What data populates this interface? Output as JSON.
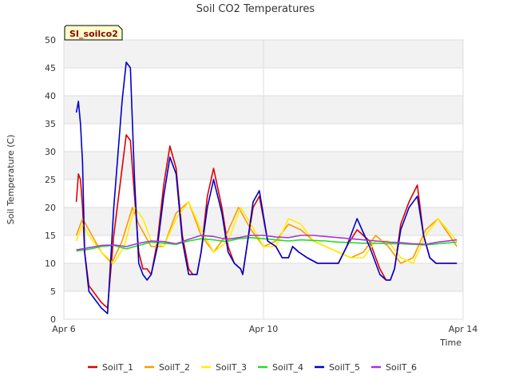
{
  "chart_data": {
    "type": "line",
    "title": "Soil CO2 Temperatures",
    "badge": "SI_soilco2",
    "xlabel": "Time",
    "ylabel": "Soil Temperature (C)",
    "ylim": [
      0,
      50
    ],
    "yticks": [
      0,
      5,
      10,
      15,
      20,
      25,
      30,
      35,
      40,
      45,
      50
    ],
    "xlim": [
      "2024-04-06",
      "2024-04-14"
    ],
    "xticks": [
      {
        "date": "2024-04-06",
        "label": "Apr 6"
      },
      {
        "date": "2024-04-10",
        "label": "Apr 10"
      },
      {
        "date": "2024-04-14",
        "label": "Apr 14"
      }
    ],
    "grid": true,
    "legend_position": "bottom",
    "series": [
      {
        "name": "SoilT_1",
        "color": "#dd0000",
        "x": [
          "2024-04-06 06:00",
          "2024-04-06 07:00",
          "2024-04-06 08:00",
          "2024-04-06 09:00",
          "2024-04-06 10:00",
          "2024-04-06 12:00",
          "2024-04-06 14:00",
          "2024-04-06 16:00",
          "2024-04-06 18:00",
          "2024-04-06 21:00",
          "2024-04-07 00:00",
          "2024-04-07 04:00",
          "2024-04-07 06:00",
          "2024-04-07 08:00",
          "2024-04-07 10:00",
          "2024-04-07 12:00",
          "2024-04-07 14:00",
          "2024-04-07 16:00",
          "2024-04-07 18:00",
          "2024-04-07 21:00",
          "2024-04-08 00:00",
          "2024-04-08 03:00",
          "2024-04-08 06:00",
          "2024-04-08 09:00",
          "2024-04-08 12:00",
          "2024-04-08 14:00",
          "2024-04-08 16:00",
          "2024-04-08 18:00",
          "2024-04-08 21:00",
          "2024-04-09 00:00",
          "2024-04-09 04:00",
          "2024-04-09 07:00",
          "2024-04-09 10:00",
          "2024-04-09 13:00",
          "2024-04-09 14:00",
          "2024-04-09 16:00",
          "2024-04-09 19:00",
          "2024-04-09 22:00",
          "2024-04-10 02:00",
          "2024-04-10 06:00",
          "2024-04-10 09:00",
          "2024-04-10 12:00",
          "2024-04-10 14:00",
          "2024-04-10 17:00",
          "2024-04-10 21:00",
          "2024-04-11 02:00",
          "2024-04-11 05:00",
          "2024-04-11 07:00",
          "2024-04-11 09:00",
          "2024-04-11 12:00",
          "2024-04-11 16:00",
          "2024-04-11 21:00",
          "2024-04-12 03:00",
          "2024-04-12 08:00",
          "2024-04-12 11:00",
          "2024-04-12 13:00",
          "2024-04-12 15:00",
          "2024-04-12 18:00",
          "2024-04-12 22:00",
          "2024-04-13 02:00",
          "2024-04-13 05:00",
          "2024-04-13 08:00",
          "2024-04-13 11:00",
          "2024-04-13 13:00",
          "2024-04-13 15:00",
          "2024-04-13 18:00",
          "2024-04-13 21:00"
        ],
        "y": [
          21,
          26,
          25,
          20,
          12,
          6,
          5,
          4,
          3,
          2,
          15,
          27,
          33,
          32,
          22,
          12,
          9,
          9,
          8,
          14,
          24,
          31,
          27,
          15,
          9,
          8,
          8,
          12,
          22,
          27,
          20,
          13,
          10,
          9,
          8,
          13,
          20,
          22,
          14,
          13,
          11,
          11,
          13,
          12,
          11,
          10,
          10,
          10,
          10,
          10,
          13,
          16,
          14,
          9,
          7,
          7,
          9,
          17,
          21,
          24,
          15,
          11,
          10,
          10,
          10,
          10,
          10
        ]
      },
      {
        "name": "SoilT_2",
        "color": "#ff9900",
        "x": [
          "2024-04-06 06:00",
          "2024-04-06 09:00",
          "2024-04-06 12:00",
          "2024-04-06 18:00",
          "2024-04-06 23:00",
          "2024-04-07 04:00",
          "2024-04-07 09:00",
          "2024-04-07 12:00",
          "2024-04-07 18:00",
          "2024-04-08 00:00",
          "2024-04-08 06:00",
          "2024-04-08 12:00",
          "2024-04-08 18:00",
          "2024-04-09 00:00",
          "2024-04-09 06:00",
          "2024-04-09 12:00",
          "2024-04-09 18:00",
          "2024-04-10 00:00",
          "2024-04-10 06:00",
          "2024-04-10 12:00",
          "2024-04-10 18:00",
          "2024-04-11 00:00",
          "2024-04-11 06:00",
          "2024-04-11 12:00",
          "2024-04-11 18:00",
          "2024-04-12 00:00",
          "2024-04-12 06:00",
          "2024-04-12 12:00",
          "2024-04-12 18:00",
          "2024-04-13 00:00",
          "2024-04-13 06:00",
          "2024-04-13 12:00",
          "2024-04-13 21:00"
        ],
        "y": [
          15,
          18,
          16,
          12,
          10,
          14,
          20,
          17,
          13,
          13,
          19,
          21,
          15,
          12,
          15,
          20,
          16,
          13,
          14,
          17,
          16,
          14,
          13,
          12,
          11,
          12,
          15,
          13,
          10,
          11,
          16,
          18,
          13
        ]
      },
      {
        "name": "SoilT_3",
        "color": "#ffee00",
        "x": [
          "2024-04-06 06:00",
          "2024-04-06 09:00",
          "2024-04-06 12:00",
          "2024-04-06 18:00",
          "2024-04-07 00:00",
          "2024-04-07 05:00",
          "2024-04-07 10:00",
          "2024-04-07 14:00",
          "2024-04-07 18:00",
          "2024-04-08 00:00",
          "2024-04-08 06:00",
          "2024-04-08 12:00",
          "2024-04-08 18:00",
          "2024-04-09 00:00",
          "2024-04-09 07:00",
          "2024-04-09 13:00",
          "2024-04-09 18:00",
          "2024-04-10 00:00",
          "2024-04-10 06:00",
          "2024-04-10 12:00",
          "2024-04-10 18:00",
          "2024-04-11 00:00",
          "2024-04-11 06:00",
          "2024-04-11 12:00",
          "2024-04-11 18:00",
          "2024-04-12 00:00",
          "2024-04-12 06:00",
          "2024-04-12 12:00",
          "2024-04-12 18:00",
          "2024-04-13 00:00",
          "2024-04-13 06:00",
          "2024-04-13 12:00",
          "2024-04-13 21:00"
        ],
        "y": [
          14,
          17,
          15,
          12,
          10,
          13,
          20,
          18,
          14,
          13,
          18,
          21,
          16,
          12,
          14,
          20,
          17,
          13,
          13,
          18,
          17,
          14,
          13,
          12,
          11,
          11,
          14,
          14,
          11,
          10,
          15,
          18,
          14
        ]
      },
      {
        "name": "SoilT_4",
        "color": "#22dd22",
        "x": [
          "2024-04-06 06:00",
          "2024-04-06 12:00",
          "2024-04-06 18:00",
          "2024-04-07 00:00",
          "2024-04-07 06:00",
          "2024-04-07 12:00",
          "2024-04-07 18:00",
          "2024-04-08 00:00",
          "2024-04-08 06:00",
          "2024-04-08 12:00",
          "2024-04-08 18:00",
          "2024-04-09 00:00",
          "2024-04-09 06:00",
          "2024-04-09 12:00",
          "2024-04-09 18:00",
          "2024-04-10 00:00",
          "2024-04-10 06:00",
          "2024-04-10 12:00",
          "2024-04-10 18:00",
          "2024-04-11 00:00",
          "2024-04-11 06:00",
          "2024-04-11 12:00",
          "2024-04-11 18:00",
          "2024-04-12 00:00",
          "2024-04-12 06:00",
          "2024-04-12 12:00",
          "2024-04-12 18:00",
          "2024-04-13 00:00",
          "2024-04-13 06:00",
          "2024-04-13 12:00",
          "2024-04-13 21:00"
        ],
        "y": [
          12.2,
          12.5,
          13.0,
          13.2,
          12.6,
          13.2,
          13.8,
          13.6,
          13.4,
          14.0,
          14.4,
          14.2,
          13.9,
          14.4,
          14.6,
          14.4,
          14.2,
          14.0,
          14.2,
          14.1,
          14.0,
          13.8,
          13.7,
          13.6,
          13.6,
          13.5,
          13.5,
          13.4,
          13.3,
          13.5,
          13.8
        ]
      },
      {
        "name": "SoilT_5",
        "color": "#0000cc",
        "x": [
          "2024-04-06 06:00",
          "2024-04-06 07:00",
          "2024-04-06 08:00",
          "2024-04-06 09:00",
          "2024-04-06 10:00",
          "2024-04-06 12:00",
          "2024-04-06 14:00",
          "2024-04-06 16:00",
          "2024-04-06 18:00",
          "2024-04-06 21:00",
          "2024-04-07 00:00",
          "2024-04-07 04:00",
          "2024-04-07 06:00",
          "2024-04-07 08:00",
          "2024-04-07 10:00",
          "2024-04-07 12:00",
          "2024-04-07 14:00",
          "2024-04-07 16:00",
          "2024-04-07 18:00",
          "2024-04-07 21:00",
          "2024-04-08 00:00",
          "2024-04-08 03:00",
          "2024-04-08 06:00",
          "2024-04-08 09:00",
          "2024-04-08 12:00",
          "2024-04-08 14:00",
          "2024-04-08 16:00",
          "2024-04-08 18:00",
          "2024-04-08 21:00",
          "2024-04-09 00:00",
          "2024-04-09 04:00",
          "2024-04-09 07:00",
          "2024-04-09 10:00",
          "2024-04-09 13:00",
          "2024-04-09 14:00",
          "2024-04-09 16:00",
          "2024-04-09 19:00",
          "2024-04-09 22:00",
          "2024-04-10 02:00",
          "2024-04-10 06:00",
          "2024-04-10 09:00",
          "2024-04-10 12:00",
          "2024-04-10 14:00",
          "2024-04-10 17:00",
          "2024-04-10 21:00",
          "2024-04-11 02:00",
          "2024-04-11 05:00",
          "2024-04-11 07:00",
          "2024-04-11 09:00",
          "2024-04-11 12:00",
          "2024-04-11 16:00",
          "2024-04-11 21:00",
          "2024-04-12 03:00",
          "2024-04-12 08:00",
          "2024-04-12 11:00",
          "2024-04-12 13:00",
          "2024-04-12 15:00",
          "2024-04-12 18:00",
          "2024-04-12 22:00",
          "2024-04-13 02:00",
          "2024-04-13 05:00",
          "2024-04-13 08:00",
          "2024-04-13 11:00",
          "2024-04-13 13:00",
          "2024-04-13 15:00",
          "2024-04-13 18:00",
          "2024-04-13 21:00"
        ],
        "y": [
          37,
          39,
          35,
          28,
          12,
          5,
          4,
          3,
          2,
          1,
          20,
          39,
          46,
          45,
          25,
          10,
          8,
          7,
          8,
          13,
          22,
          29,
          26,
          14,
          8,
          8,
          8,
          12,
          20,
          25,
          19,
          12,
          10,
          9,
          8,
          13,
          21,
          23,
          14,
          13,
          11,
          11,
          13,
          12,
          11,
          10,
          10,
          10,
          10,
          10,
          13,
          18,
          13,
          8,
          7,
          7,
          9,
          16,
          20,
          22,
          15,
          11,
          10,
          10,
          10,
          10,
          10
        ]
      },
      {
        "name": "SoilT_6",
        "color": "#aa33dd",
        "x": [
          "2024-04-06 06:00",
          "2024-04-06 12:00",
          "2024-04-06 18:00",
          "2024-04-07 00:00",
          "2024-04-07 06:00",
          "2024-04-07 12:00",
          "2024-04-07 18:00",
          "2024-04-08 00:00",
          "2024-04-08 06:00",
          "2024-04-08 12:00",
          "2024-04-08 18:00",
          "2024-04-09 00:00",
          "2024-04-09 06:00",
          "2024-04-09 12:00",
          "2024-04-09 18:00",
          "2024-04-10 00:00",
          "2024-04-10 06:00",
          "2024-04-10 12:00",
          "2024-04-10 18:00",
          "2024-04-11 00:00",
          "2024-04-11 06:00",
          "2024-04-11 12:00",
          "2024-04-11 18:00",
          "2024-04-12 00:00",
          "2024-04-12 06:00",
          "2024-04-12 12:00",
          "2024-04-12 18:00",
          "2024-04-13 00:00",
          "2024-04-13 06:00",
          "2024-04-13 12:00",
          "2024-04-13 21:00"
        ],
        "y": [
          12.4,
          12.8,
          13.2,
          13.3,
          13.0,
          13.6,
          14.0,
          13.9,
          13.5,
          14.3,
          15.0,
          14.8,
          14.3,
          14.6,
          15.0,
          15.0,
          14.7,
          14.6,
          15.0,
          15.0,
          14.8,
          14.6,
          14.4,
          14.2,
          14.0,
          13.8,
          13.7,
          13.5,
          13.4,
          13.8,
          14.2
        ]
      }
    ]
  }
}
